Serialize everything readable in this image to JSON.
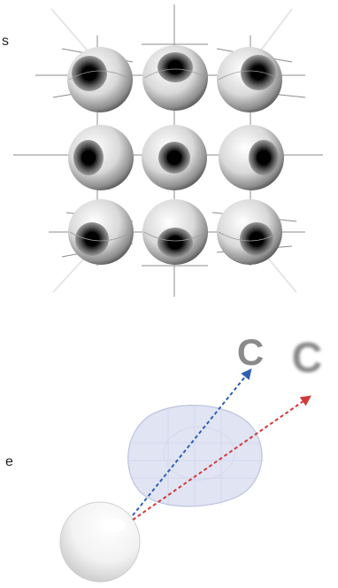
{
  "left_edge_text": {
    "top_char": "s",
    "bottom_char": "e"
  },
  "letters": {
    "sharp": "C",
    "blurred": "C"
  },
  "eye_grid": {
    "rows": 3,
    "cols": 3,
    "iris_directions": [
      "up-left",
      "up",
      "up-right",
      "left",
      "center",
      "right",
      "down-left",
      "down",
      "down-right"
    ]
  },
  "ray_colors": {
    "blue": "#2f5fb3",
    "red": "#d23a3a",
    "lens_fill": "#dfe3f3",
    "lens_stroke": "#b9c0dc"
  }
}
